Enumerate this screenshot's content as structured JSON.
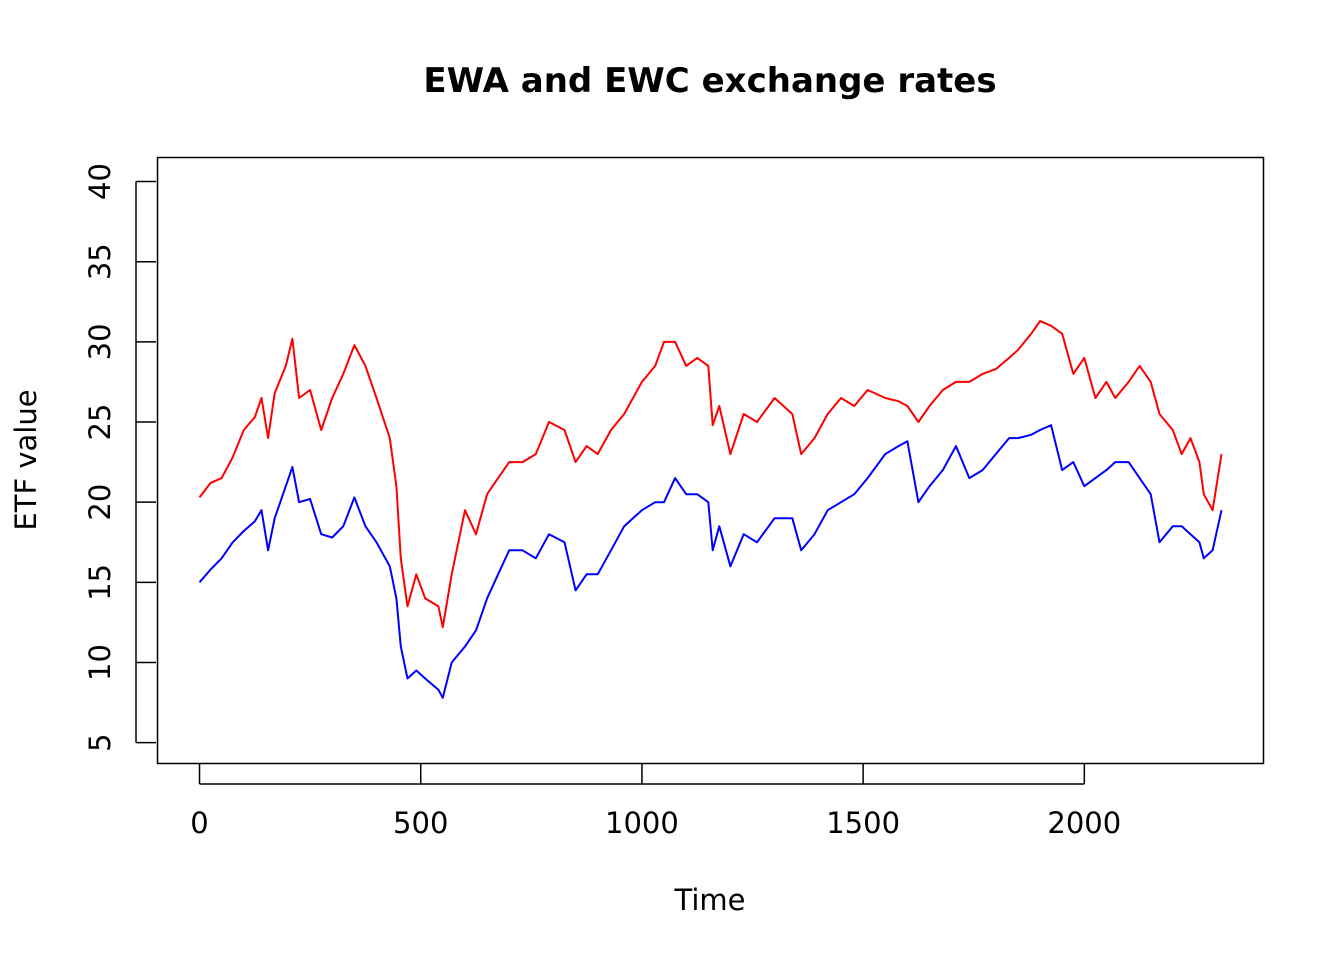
{
  "chart_data": {
    "type": "line",
    "title": "EWA and EWC exchange rates",
    "xlabel": "Time",
    "ylabel": "ETF value",
    "xlim": [
      -95,
      2405
    ],
    "ylim": [
      3.7,
      41.5
    ],
    "xticks": [
      0,
      500,
      1000,
      1500,
      2000
    ],
    "yticks": [
      5,
      10,
      15,
      20,
      25,
      30,
      35,
      40
    ],
    "grid": false,
    "legend": "none",
    "series": [
      {
        "color": "#ff0000",
        "x": [
          0,
          25,
          50,
          75,
          100,
          125,
          140,
          155,
          170,
          195,
          210,
          225,
          250,
          275,
          300,
          325,
          350,
          375,
          400,
          430,
          445,
          455,
          470,
          490,
          510,
          540,
          550,
          570,
          600,
          625,
          650,
          675,
          700,
          730,
          760,
          790,
          825,
          850,
          875,
          900,
          930,
          960,
          1000,
          1030,
          1050,
          1075,
          1100,
          1125,
          1150,
          1160,
          1175,
          1200,
          1230,
          1260,
          1300,
          1340,
          1360,
          1390,
          1420,
          1450,
          1480,
          1510,
          1550,
          1580,
          1600,
          1625,
          1650,
          1680,
          1710,
          1740,
          1770,
          1800,
          1830,
          1850,
          1880,
          1900,
          1925,
          1950,
          1975,
          2000,
          2025,
          2050,
          2070,
          2100,
          2125,
          2150,
          2170,
          2200,
          2220,
          2240,
          2260,
          2270,
          2290,
          2310
        ],
        "values": [
          20.3,
          21.2,
          21.5,
          22.8,
          24.5,
          25.3,
          26.5,
          24.0,
          26.8,
          28.5,
          30.2,
          26.5,
          27.0,
          24.5,
          26.5,
          28.0,
          29.8,
          28.5,
          26.5,
          24.0,
          21.0,
          16.5,
          13.5,
          15.5,
          14.0,
          13.5,
          12.2,
          15.5,
          19.5,
          18.0,
          20.5,
          21.5,
          22.5,
          22.5,
          23.0,
          25.0,
          24.5,
          22.5,
          23.5,
          23.0,
          24.5,
          25.5,
          27.5,
          28.5,
          30.0,
          30.0,
          28.5,
          29.0,
          28.5,
          24.8,
          26.0,
          23.0,
          25.5,
          25.0,
          26.5,
          25.5,
          23.0,
          24.0,
          25.5,
          26.5,
          26.0,
          27.0,
          26.5,
          26.3,
          26.0,
          25.0,
          26.0,
          27.0,
          27.5,
          27.5,
          28.0,
          28.3,
          29.0,
          29.5,
          30.5,
          31.3,
          31.0,
          30.5,
          28.0,
          29.0,
          26.5,
          27.5,
          26.5,
          27.5,
          28.5,
          27.5,
          25.5,
          24.5,
          23.0,
          24.0,
          22.5,
          20.5,
          19.5,
          23.0
        ]
      },
      {
        "color": "#0000ff",
        "x": [
          0,
          25,
          50,
          75,
          100,
          125,
          140,
          155,
          170,
          195,
          210,
          225,
          250,
          275,
          300,
          325,
          350,
          375,
          400,
          430,
          445,
          455,
          470,
          490,
          510,
          540,
          550,
          570,
          600,
          625,
          650,
          675,
          700,
          730,
          760,
          790,
          825,
          850,
          875,
          900,
          930,
          960,
          1000,
          1030,
          1050,
          1075,
          1100,
          1125,
          1150,
          1160,
          1175,
          1200,
          1230,
          1260,
          1300,
          1340,
          1360,
          1390,
          1420,
          1450,
          1480,
          1510,
          1550,
          1580,
          1600,
          1625,
          1650,
          1680,
          1710,
          1740,
          1770,
          1800,
          1830,
          1850,
          1880,
          1900,
          1925,
          1950,
          1975,
          2000,
          2025,
          2050,
          2070,
          2100,
          2125,
          2150,
          2170,
          2200,
          2220,
          2240,
          2260,
          2270,
          2290,
          2310
        ],
        "values": [
          15.0,
          15.8,
          16.5,
          17.5,
          18.2,
          18.8,
          19.5,
          17.0,
          19.0,
          21.0,
          22.2,
          20.0,
          20.2,
          18.0,
          17.8,
          18.5,
          20.3,
          18.5,
          17.5,
          16.0,
          14.0,
          11.0,
          9.0,
          9.5,
          9.0,
          8.3,
          7.8,
          10.0,
          11.0,
          12.0,
          14.0,
          15.5,
          17.0,
          17.0,
          16.5,
          18.0,
          17.5,
          14.5,
          15.5,
          15.5,
          17.0,
          18.5,
          19.5,
          20.0,
          20.0,
          21.5,
          20.5,
          20.5,
          20.0,
          17.0,
          18.5,
          16.0,
          18.0,
          17.5,
          19.0,
          19.0,
          17.0,
          18.0,
          19.5,
          20.0,
          20.5,
          21.5,
          23.0,
          23.5,
          23.8,
          20.0,
          21.0,
          22.0,
          23.5,
          21.5,
          22.0,
          23.0,
          24.0,
          24.0,
          24.2,
          24.5,
          24.8,
          22.0,
          22.5,
          21.0,
          21.5,
          22.0,
          22.5,
          22.5,
          21.5,
          20.5,
          17.5,
          18.5,
          18.5,
          18.0,
          17.5,
          16.5,
          17.0,
          19.5
        ]
      }
    ]
  }
}
